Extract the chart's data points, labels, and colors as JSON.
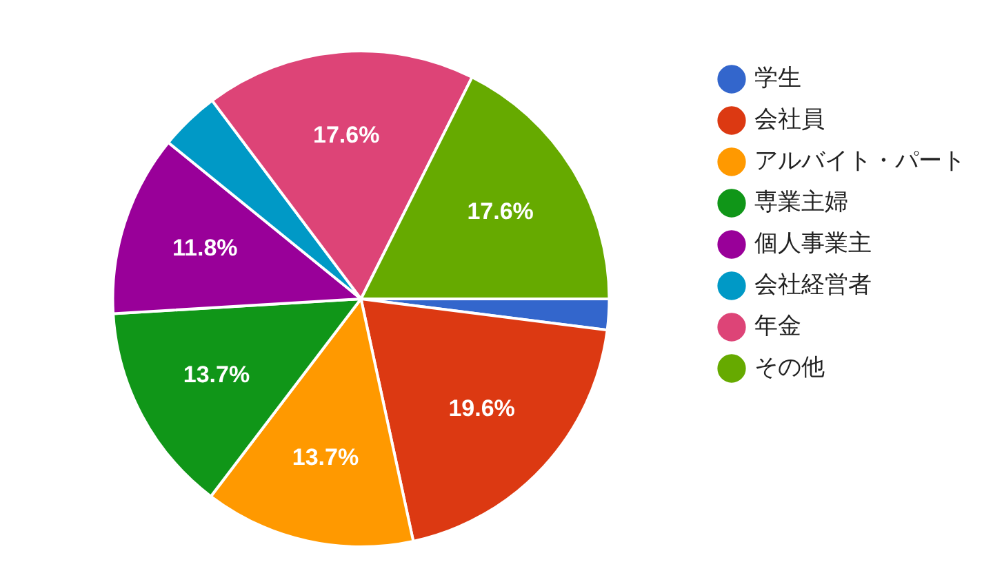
{
  "chart_data": {
    "type": "pie",
    "categories": [
      "学生",
      "会社員",
      "アルバイト・パート",
      "専業主婦",
      "個人事業主",
      "会社経営者",
      "年金",
      "その他"
    ],
    "values": [
      2.0,
      19.6,
      13.7,
      13.7,
      11.8,
      3.9,
      17.6,
      17.6
    ],
    "colors": [
      "#3366cc",
      "#dc3912",
      "#ff9900",
      "#109618",
      "#990099",
      "#0099c6",
      "#dd4477",
      "#66aa00"
    ],
    "value_labels": [
      null,
      "19.6%",
      "13.7%",
      "13.7%",
      "11.8%",
      null,
      "17.6%",
      "17.6%"
    ],
    "legend": "right"
  }
}
